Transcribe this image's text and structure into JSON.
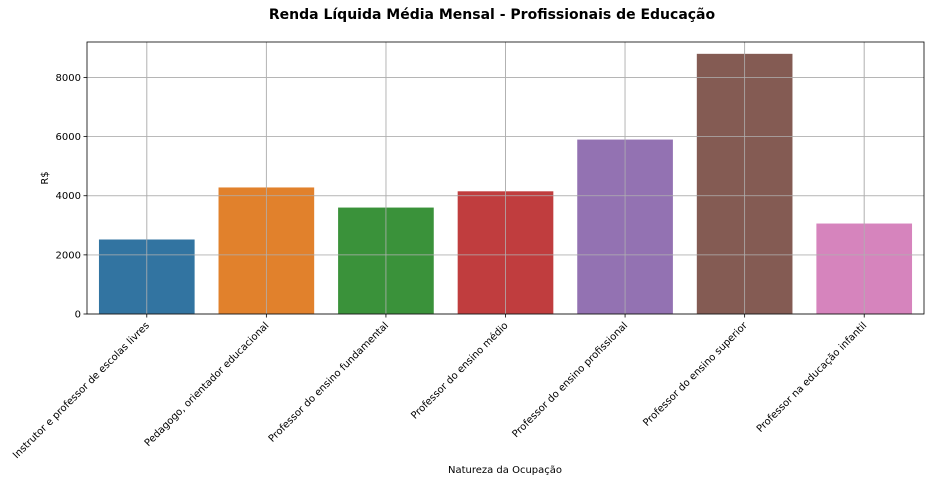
{
  "chart_data": {
    "type": "bar",
    "title": "Renda Líquida Média Mensal - Profissionais de Educação",
    "xlabel": "Natureza da Ocupação",
    "ylabel": "R$",
    "categories": [
      "Instrutor e professor de escolas livres",
      "Pedagogo, orientador educacional",
      "Professor do ensino fundamental",
      "Professor do ensino médio",
      "Professor do ensino profissional",
      "Professor do ensino superior",
      "Professor na educação infantil"
    ],
    "values": [
      2520,
      4280,
      3600,
      4150,
      5900,
      8800,
      3060
    ],
    "colors": [
      "#3274a1",
      "#e1812c",
      "#3a923a",
      "#c03d3e",
      "#9372b2",
      "#845b53",
      "#d684bd"
    ],
    "ylim": [
      0,
      9200
    ],
    "yticks": [
      0,
      2000,
      4000,
      6000,
      8000
    ],
    "grid": true,
    "legend": "none"
  }
}
